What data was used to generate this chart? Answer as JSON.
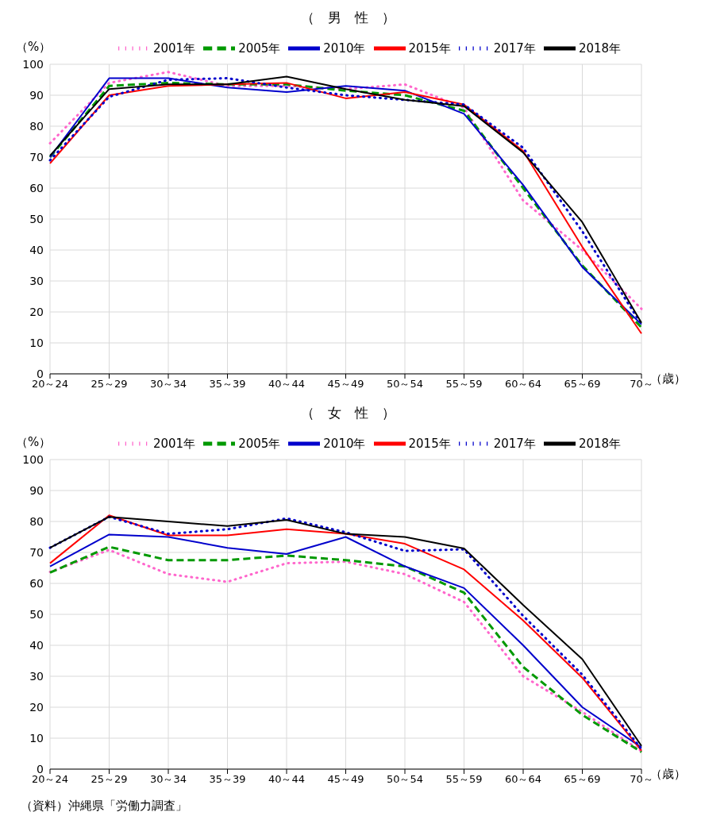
{
  "chart_data": [
    {
      "type": "line",
      "title": "（　男　性　）",
      "ylabel": "（%）",
      "xlabel": "（歳）",
      "categories": [
        "20～24",
        "25～29",
        "30～34",
        "35～39",
        "40～44",
        "45～49",
        "50～54",
        "55～59",
        "60～64",
        "65～69",
        "70～"
      ],
      "ylim": [
        0,
        100
      ],
      "yticks": [
        0,
        10,
        20,
        30,
        40,
        50,
        60,
        70,
        80,
        90,
        100
      ],
      "grid": true,
      "legend": "top",
      "series": [
        {
          "name": "2001年",
          "color": "#ff66cc",
          "line_style": "dotted",
          "values": [
            74.5,
            94,
            97.5,
            93,
            93,
            92,
            93.5,
            86,
            56,
            40,
            21
          ]
        },
        {
          "name": "2005年",
          "color": "#009900",
          "line_style": "dashed",
          "values": [
            70,
            93,
            94,
            93.5,
            93.5,
            91.5,
            90,
            85,
            60,
            35,
            15
          ]
        },
        {
          "name": "2010年",
          "color": "#0000cc",
          "line_style": "solid",
          "values": [
            70,
            95.5,
            95.5,
            92.5,
            91,
            93,
            91.5,
            84,
            61,
            34.5,
            16
          ]
        },
        {
          "name": "2015年",
          "color": "#ff0000",
          "line_style": "solid",
          "values": [
            68,
            90,
            93,
            93.5,
            94,
            89,
            91,
            87,
            72,
            41,
            13
          ]
        },
        {
          "name": "2017年",
          "color": "#0000cc",
          "line_style": "dotted",
          "values": [
            69,
            89.5,
            95,
            95.5,
            92.5,
            90,
            88.5,
            87,
            73,
            46,
            16
          ]
        },
        {
          "name": "2018年",
          "color": "#000000",
          "line_style": "solid",
          "values": [
            70.5,
            92,
            93.5,
            93.5,
            96,
            92,
            88.5,
            86.5,
            71.5,
            49,
            16.5
          ]
        }
      ]
    },
    {
      "type": "line",
      "title": "（　女　性　）",
      "ylabel": "（%）",
      "xlabel": "（歳）",
      "categories": [
        "20～24",
        "25～29",
        "30～34",
        "35～39",
        "40～44",
        "45～49",
        "50～54",
        "55～59",
        "60～64",
        "65～69",
        "70～"
      ],
      "ylim": [
        0,
        100
      ],
      "yticks": [
        0,
        10,
        20,
        30,
        40,
        50,
        60,
        70,
        80,
        90,
        100
      ],
      "grid": true,
      "legend": "top",
      "annotations": [
        "（資料）沖縄県「労働力調査」"
      ],
      "series": [
        {
          "name": "2001年",
          "color": "#ff66cc",
          "line_style": "dotted",
          "values": [
            63.7,
            70.8,
            63,
            60.5,
            66.5,
            67,
            63,
            54,
            30,
            18.5,
            5.8
          ]
        },
        {
          "name": "2005年",
          "color": "#009900",
          "line_style": "dashed",
          "values": [
            63.5,
            71.8,
            67.5,
            67.5,
            69,
            67.5,
            65.5,
            57,
            33,
            17.5,
            5.5
          ]
        },
        {
          "name": "2010年",
          "color": "#0000cc",
          "line_style": "solid",
          "values": [
            65.5,
            75.8,
            75,
            71.5,
            69.5,
            75,
            65.5,
            58.5,
            40,
            20,
            7
          ]
        },
        {
          "name": "2015年",
          "color": "#ff0000",
          "line_style": "solid",
          "values": [
            66.5,
            82,
            75.5,
            75.5,
            77.5,
            76,
            72.8,
            64.5,
            48,
            29.5,
            6
          ]
        },
        {
          "name": "2017年",
          "color": "#0000cc",
          "line_style": "dotted",
          "values": [
            71.5,
            81.5,
            76,
            77.5,
            81,
            76.5,
            70.5,
            71,
            49.5,
            30.5,
            6.5
          ]
        },
        {
          "name": "2018年",
          "color": "#000000",
          "line_style": "solid",
          "values": [
            71.5,
            81.5,
            80,
            78.5,
            80.5,
            76,
            75,
            71.3,
            53,
            35.5,
            7.5
          ]
        }
      ]
    }
  ]
}
